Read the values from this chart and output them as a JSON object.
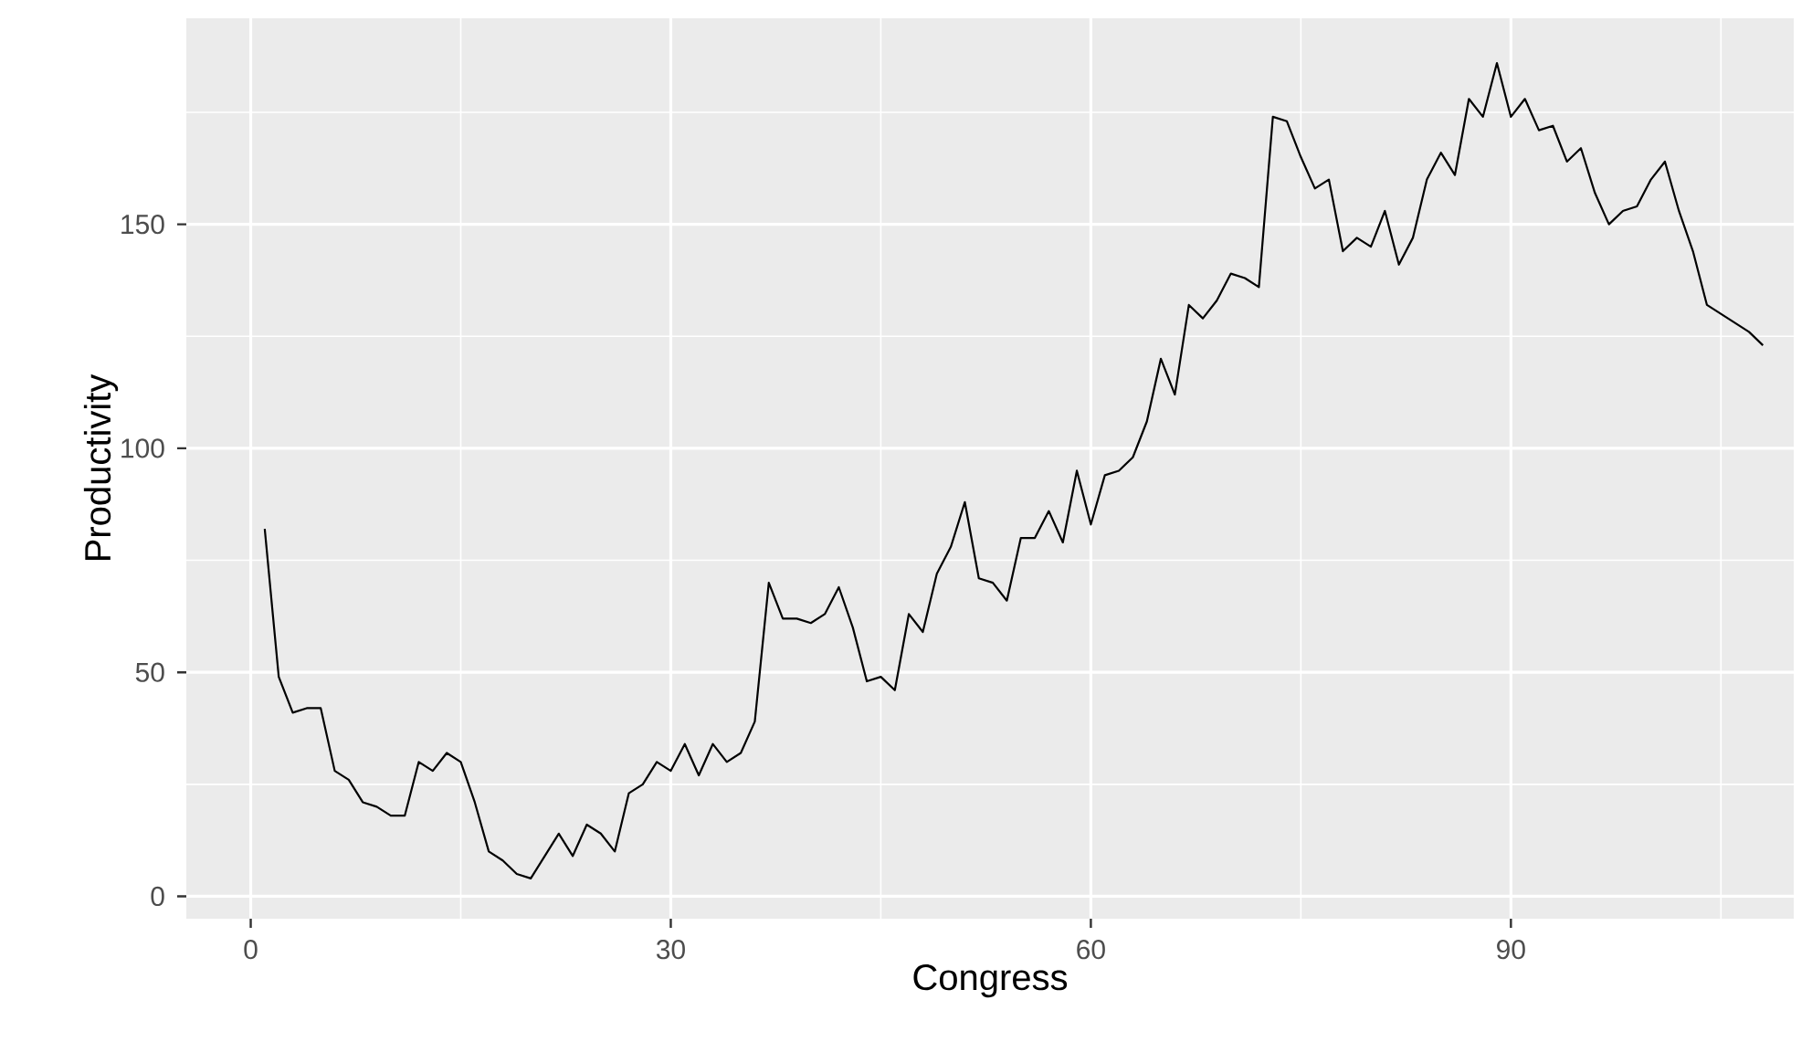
{
  "chart_data": {
    "type": "line",
    "xlabel": "Congress",
    "ylabel": "Productivity",
    "x": [
      1,
      2,
      3,
      4,
      5,
      6,
      7,
      8,
      9,
      10,
      11,
      12,
      13,
      14,
      15,
      16,
      17,
      18,
      19,
      20,
      21,
      22,
      23,
      24,
      25,
      26,
      27,
      28,
      29,
      30,
      31,
      32,
      33,
      34,
      35,
      36,
      37,
      38,
      39,
      40,
      41,
      42,
      43,
      44,
      45,
      46,
      47,
      48,
      49,
      50,
      51,
      52,
      53,
      54,
      55,
      56,
      57,
      58,
      59,
      60,
      61,
      62,
      63,
      64,
      65,
      66,
      67,
      68,
      69,
      70,
      71,
      72,
      73,
      74,
      75,
      76,
      77,
      78,
      79,
      80,
      81,
      82,
      83,
      84,
      85,
      86,
      87,
      88,
      89,
      90,
      91,
      92,
      93,
      94,
      95,
      96,
      97,
      98,
      99,
      100,
      101,
      102,
      103,
      104,
      105,
      106,
      107,
      108
    ],
    "series": [
      {
        "color": "#000000",
        "values": [
          82,
          49,
          41,
          42,
          42,
          28,
          26,
          21,
          20,
          18,
          18,
          30,
          28,
          32,
          30,
          21,
          10,
          8,
          5,
          4,
          9,
          14,
          9,
          16,
          14,
          10,
          23,
          25,
          30,
          28,
          34,
          27,
          34,
          30,
          32,
          39,
          70,
          62,
          62,
          61,
          63,
          69,
          60,
          48,
          49,
          46,
          63,
          59,
          72,
          78,
          88,
          71,
          70,
          66,
          80,
          80,
          86,
          79,
          95,
          83,
          94,
          95,
          98,
          106,
          120,
          112,
          132,
          129,
          133,
          139,
          138,
          136,
          174,
          173,
          165,
          158,
          160,
          144,
          147,
          145,
          153,
          141,
          147,
          160,
          166,
          161,
          178,
          174,
          186,
          174,
          178,
          171,
          172,
          164,
          167,
          157,
          150,
          153,
          154,
          160,
          164,
          153,
          144,
          132,
          130,
          128,
          126,
          123
        ]
      }
    ],
    "xlim": [
      -4.6,
      110.2
    ],
    "ylim": [
      -5,
      196
    ],
    "xticks": [
      0,
      30,
      60,
      90
    ],
    "yticks": [
      0,
      50,
      100,
      150
    ],
    "grid": true,
    "marker": "none",
    "line_style": "solid"
  }
}
